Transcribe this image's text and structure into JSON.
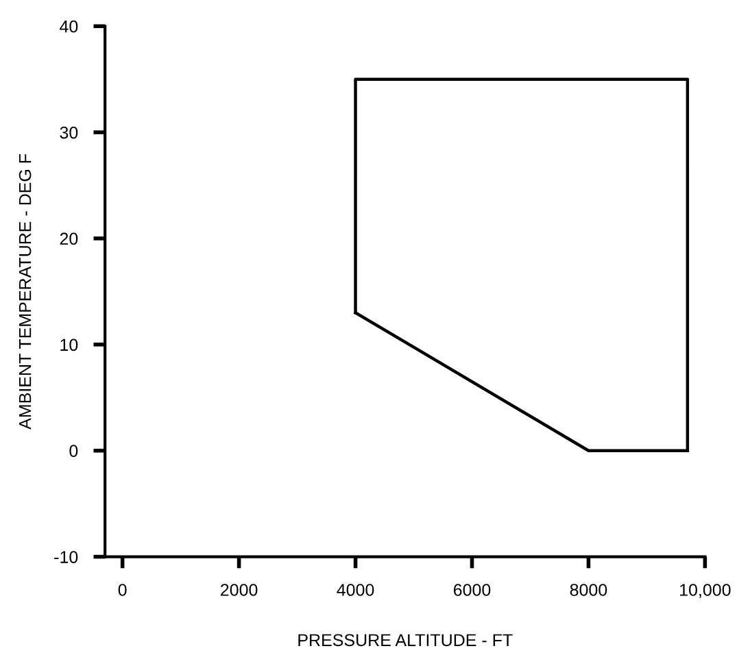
{
  "chart_data": {
    "type": "line",
    "xlabel": "PRESSURE ALTITUDE - FT",
    "ylabel": "AMBIENT TEMPERATURE - DEG F",
    "series": [
      {
        "color": "#000000",
        "x": [
          4000,
          4000,
          9700,
          9700
        ],
        "values": [
          13,
          35,
          35,
          0
        ]
      },
      {
        "color": "#000000",
        "x": [
          4000,
          8000,
          9700
        ],
        "values": [
          13,
          0,
          0
        ]
      }
    ],
    "xlim": [
      -300,
      10000
    ],
    "xticks": [
      0,
      2000,
      4000,
      6000,
      8000,
      {
        "value": 10000,
        "label": "10,000"
      }
    ],
    "ylim": [
      -10,
      40
    ],
    "yticks": [
      -10,
      0,
      10,
      20,
      30,
      40
    ],
    "grid": false,
    "legend": false,
    "marker": "none",
    "line_style": "solid"
  }
}
